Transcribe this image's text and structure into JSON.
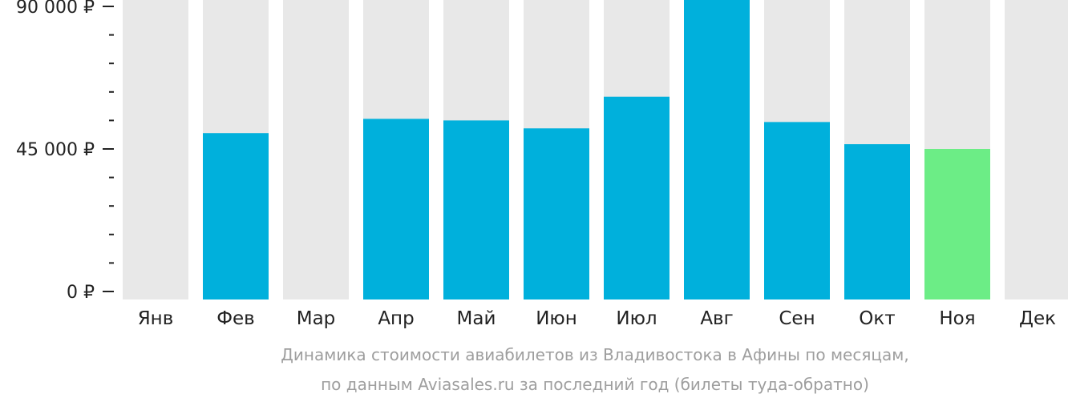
{
  "chart_data": {
    "type": "bar",
    "categories": [
      "Янв",
      "Фев",
      "Мар",
      "Апр",
      "Май",
      "Июн",
      "Июл",
      "Авг",
      "Сен",
      "Окт",
      "Ноя",
      "Дек"
    ],
    "values": [
      null,
      50000,
      null,
      54500,
      54000,
      51500,
      61500,
      94000,
      53500,
      46500,
      45000,
      null
    ],
    "bar_colors": [
      "#00b0dc",
      "#00b0dc",
      "#00b0dc",
      "#00b0dc",
      "#00b0dc",
      "#00b0dc",
      "#00b0dc",
      "#00b0dc",
      "#00b0dc",
      "#00b0dc",
      "#6ced86",
      "#00b0dc"
    ],
    "background_color": "#e8e8e8",
    "ylim": [
      0,
      95000
    ],
    "y_ticks": [
      {
        "value": 0,
        "label": "0 ₽"
      },
      {
        "value": 45000,
        "label": "45 000 ₽"
      },
      {
        "value": 90000,
        "label": "90 000 ₽"
      }
    ],
    "minor_tick_step": 9000,
    "caption": [
      "Динамика стоимости авиабилетов из Владивостока в Афины по месяцам,",
      "по данным Aviasales.ru за последний год (билеты туда-обратно)"
    ]
  }
}
